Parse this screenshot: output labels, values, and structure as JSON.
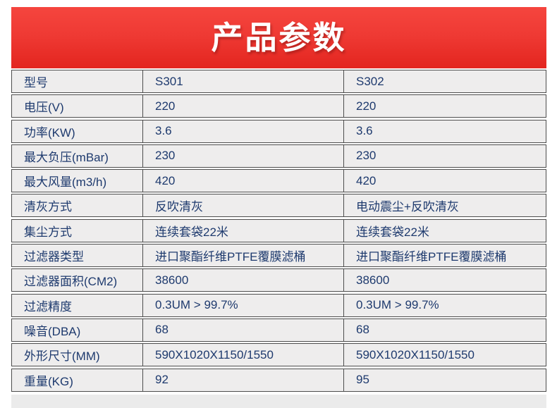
{
  "header": {
    "title": "产品参数"
  },
  "colors": {
    "banner_gradient_top": "#f5453e",
    "banner_gradient_bottom": "#e3251f",
    "banner_text": "#ffffff",
    "table_border": "#4d4d4d",
    "cell_background": "#eeeded",
    "table_text": "#1e3a6e",
    "page_background": "#ffffff",
    "footer_strip": "#ebebeb"
  },
  "table": {
    "rows": [
      [
        "型号",
        "S301",
        "S302"
      ],
      [
        "电压(V)",
        "220",
        "220"
      ],
      [
        "功率(KW)",
        "3.6",
        "3.6"
      ],
      [
        "最大负压(mBar)",
        "230",
        "230"
      ],
      [
        "最大风量(m3/h)",
        "420",
        "420"
      ],
      [
        "清灰方式",
        "反吹清灰",
        "电动震尘+反吹清灰"
      ],
      [
        "集尘方式",
        "连续套袋22米",
        "连续套袋22米"
      ],
      [
        "过滤器类型",
        "进口聚酯纤维PTFE覆膜滤桶",
        "进口聚酯纤维PTFE覆膜滤桶"
      ],
      [
        "过滤器面积(CM2)",
        "38600",
        "38600"
      ],
      [
        "过滤精度",
        "0.3UM > 99.7%",
        "0.3UM > 99.7%"
      ],
      [
        "噪音(DBA)",
        "68",
        "68"
      ],
      [
        "外形尺寸(MM)",
        "590X1020X1150/1550",
        "590X1020X1150/1550"
      ],
      [
        "重量(KG)",
        "92",
        "95"
      ]
    ]
  }
}
